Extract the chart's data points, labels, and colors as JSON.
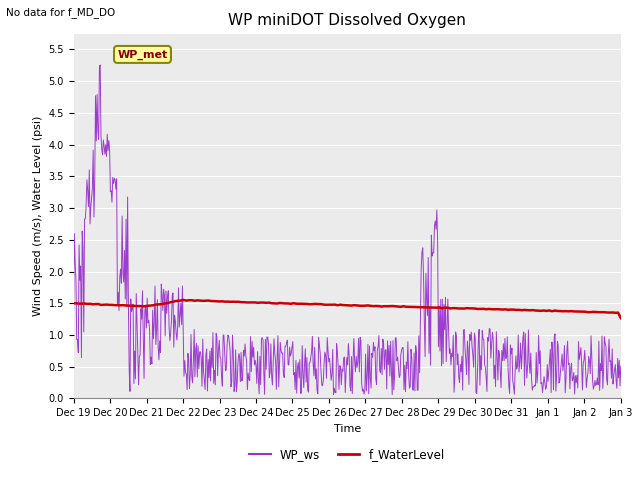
{
  "title": "WP miniDOT Dissolved Oxygen",
  "top_left_text": "No data for f_MD_DO",
  "ylabel": "Wind Speed (m/s), Water Level (psi)",
  "xlabel": "Time",
  "legend_label1": "WP_ws",
  "legend_label2": "f_WaterLevel",
  "annotation_box_text": "WP_met",
  "ylim": [
    0.0,
    5.75
  ],
  "yticks": [
    0.0,
    0.5,
    1.0,
    1.5,
    2.0,
    2.5,
    3.0,
    3.5,
    4.0,
    4.5,
    5.0,
    5.5
  ],
  "color_ws": "#9933CC",
  "color_wl": "#CC0000",
  "plot_bg_color": "#EBEBEB",
  "xtick_labels": [
    "Dec 19",
    "Dec 20",
    "Dec 21",
    "Dec 22",
    "Dec 23",
    "Dec 24",
    "Dec 25",
    "Dec 26",
    "Dec 27",
    "Dec 28",
    "Dec 29",
    "Dec 30",
    "Dec 31",
    "Jan 1",
    "Jan 2",
    "Jan 3"
  ],
  "title_fontsize": 11,
  "label_fontsize": 8,
  "tick_fontsize": 7,
  "annot_fontsize": 8
}
